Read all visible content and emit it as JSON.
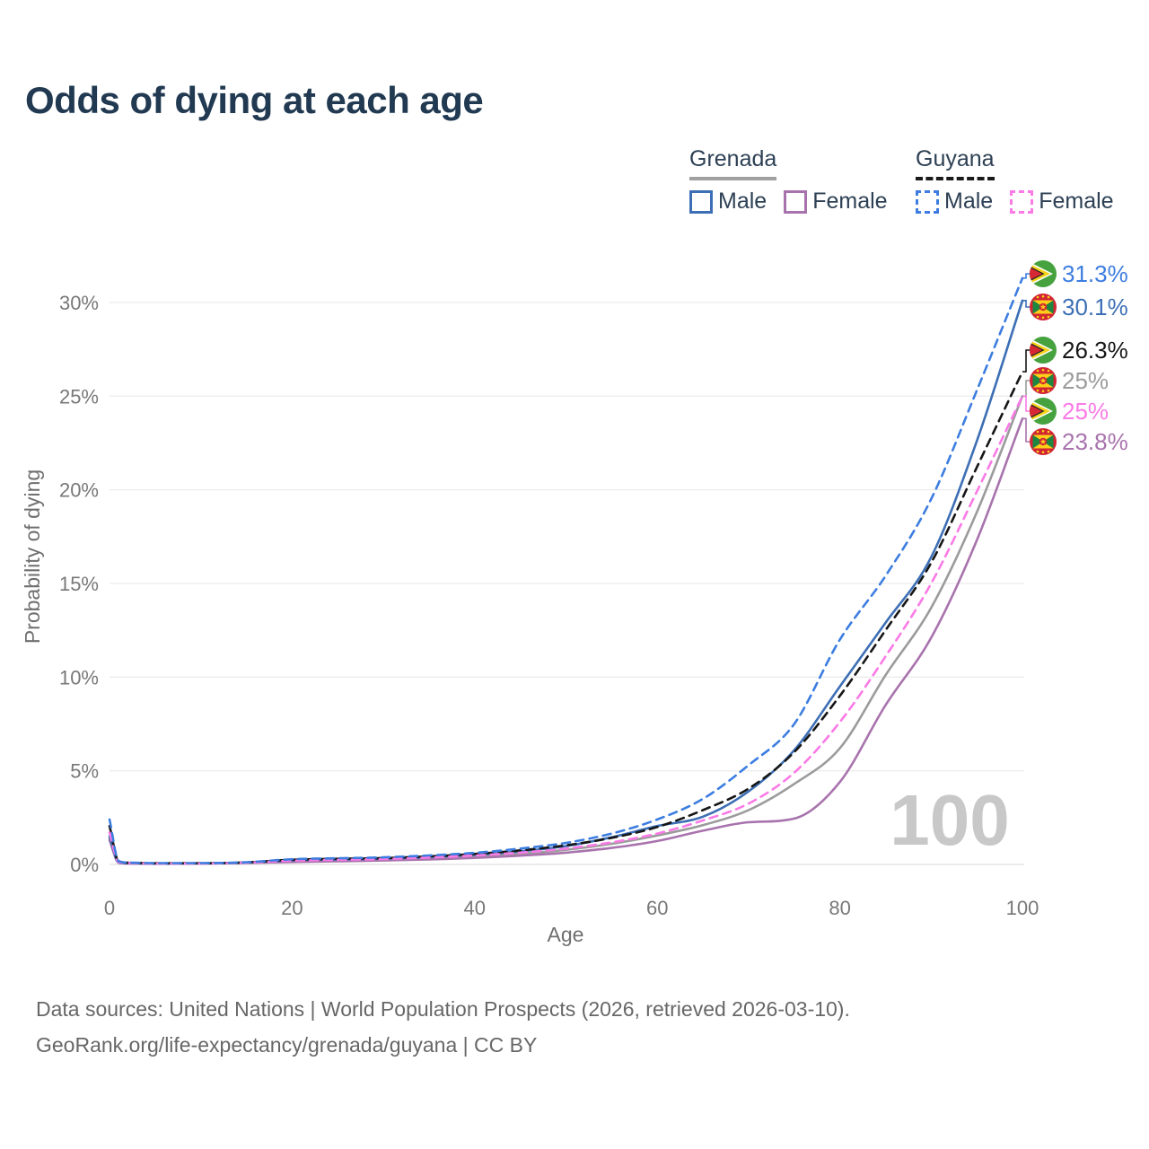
{
  "title": "Odds of dying at each age",
  "legend": {
    "groups": [
      {
        "country": "Grenada",
        "line_style": "solid",
        "line_color": "#a0a0a0",
        "items": [
          {
            "label": "Male",
            "color": "#3d6fb5",
            "dashed": false
          },
          {
            "label": "Female",
            "color": "#a873ad",
            "dashed": false
          }
        ]
      },
      {
        "country": "Guyana",
        "line_style": "dashed",
        "line_color": "#1a1a1a",
        "items": [
          {
            "label": "Male",
            "color": "#3d7de0",
            "dashed": true
          },
          {
            "label": "Female",
            "color": "#fa7ae6",
            "dashed": true
          }
        ]
      }
    ]
  },
  "chart_data": {
    "type": "line",
    "title": "Odds of dying at each age",
    "xlabel": "Age",
    "ylabel": "Probability of dying",
    "xlim": [
      0,
      100
    ],
    "ylim_pct": [
      0,
      31.5
    ],
    "grid": "horizontal",
    "legend_position": "top-right",
    "xticks": [
      0,
      20,
      40,
      60,
      80,
      100
    ],
    "ytick_labels": [
      "0%",
      "5%",
      "10%",
      "15%",
      "20%",
      "25%",
      "30%"
    ],
    "ytick_values_pct": [
      0,
      5,
      10,
      15,
      20,
      25,
      30
    ],
    "ages": [
      0,
      1,
      2,
      5,
      10,
      15,
      20,
      25,
      30,
      35,
      40,
      45,
      50,
      55,
      60,
      65,
      70,
      75,
      80,
      85,
      90,
      95,
      100
    ],
    "series": [
      {
        "name": "Guyana — Male",
        "country": "Guyana",
        "sex": "Male",
        "color": "#3d7de0",
        "dashed": true,
        "flag": "guyana",
        "flag_icon": "guyana-flag-icon",
        "end_label": "31.3%",
        "values_pct": [
          2.4,
          0.18,
          0.1,
          0.07,
          0.07,
          0.12,
          0.28,
          0.33,
          0.38,
          0.48,
          0.62,
          0.85,
          1.15,
          1.65,
          2.4,
          3.5,
          5.3,
          7.5,
          12.0,
          15.4,
          19.5,
          25.3,
          31.3
        ]
      },
      {
        "name": "Grenada — Male",
        "country": "Grenada",
        "sex": "Male",
        "color": "#3d6fb5",
        "dashed": false,
        "flag": "grenada",
        "flag_icon": "grenada-flag-icon",
        "end_label": "30.1%",
        "values_pct": [
          1.5,
          0.11,
          0.07,
          0.05,
          0.06,
          0.1,
          0.22,
          0.27,
          0.31,
          0.4,
          0.52,
          0.7,
          0.98,
          1.45,
          2.05,
          2.55,
          3.9,
          6.1,
          9.5,
          12.9,
          16.4,
          22.6,
          30.1
        ]
      },
      {
        "name": "Guyana — Both sexes",
        "country": "Guyana",
        "sex": "Both",
        "color": "#161616",
        "dashed": true,
        "flag": "guyana",
        "flag_icon": "guyana-flag-icon",
        "end_label": "26.3%",
        "values_pct": [
          2.05,
          0.15,
          0.09,
          0.06,
          0.06,
          0.11,
          0.25,
          0.3,
          0.34,
          0.43,
          0.56,
          0.75,
          1.02,
          1.42,
          2.0,
          2.9,
          4.05,
          6.0,
          9.0,
          12.5,
          16.1,
          21.2,
          26.3
        ]
      },
      {
        "name": "Grenada — Both sexes",
        "country": "Grenada",
        "sex": "Both",
        "color": "#9b9b9b",
        "dashed": false,
        "flag": "grenada",
        "flag_icon": "grenada-flag-icon",
        "end_label": "25%",
        "values_pct": [
          1.4,
          0.1,
          0.06,
          0.05,
          0.05,
          0.09,
          0.18,
          0.22,
          0.26,
          0.33,
          0.43,
          0.57,
          0.78,
          1.1,
          1.55,
          2.1,
          2.9,
          4.3,
          6.2,
          10.1,
          13.7,
          18.8,
          25.0
        ]
      },
      {
        "name": "Guyana — Female",
        "country": "Guyana",
        "sex": "Female",
        "color": "#fa7ae6",
        "dashed": true,
        "flag": "guyana",
        "flag_icon": "guyana-flag-icon",
        "end_label": "25%",
        "values_pct": [
          1.7,
          0.13,
          0.08,
          0.05,
          0.05,
          0.1,
          0.2,
          0.25,
          0.29,
          0.37,
          0.48,
          0.63,
          0.85,
          1.18,
          1.65,
          2.35,
          3.25,
          4.9,
          7.6,
          11.1,
          15.0,
          19.9,
          25.0
        ]
      },
      {
        "name": "Grenada — Female",
        "country": "Grenada",
        "sex": "Female",
        "color": "#a873ad",
        "dashed": false,
        "flag": "grenada",
        "flag_icon": "grenada-flag-icon",
        "end_label": "23.8%",
        "values_pct": [
          1.3,
          0.09,
          0.05,
          0.04,
          0.05,
          0.08,
          0.13,
          0.17,
          0.21,
          0.27,
          0.35,
          0.47,
          0.63,
          0.88,
          1.25,
          1.8,
          2.25,
          2.45,
          4.4,
          8.5,
          12.1,
          17.3,
          23.8
        ]
      }
    ]
  },
  "watermark": "100",
  "source": {
    "line1": "Data sources: United Nations | World Population Prospects (2026, retrieved 2026-03-10).",
    "line2": "GeoRank.org/life-expectancy/grenada/guyana | CC BY"
  }
}
